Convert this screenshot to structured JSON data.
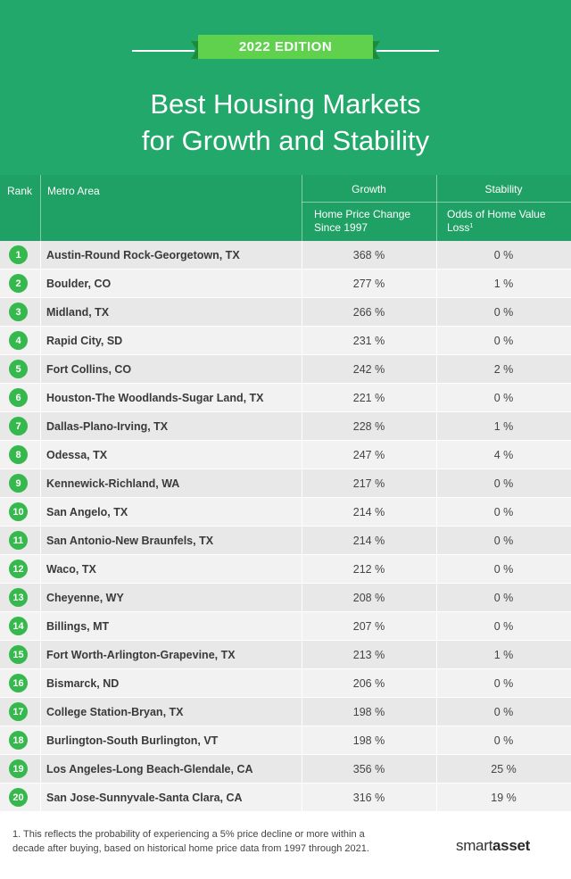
{
  "header": {
    "edition": "2022 EDITION",
    "title_line1": "Best Housing Markets",
    "title_line2": "for Growth and Stability"
  },
  "columns": {
    "rank": "Rank",
    "metro": "Metro Area",
    "growth_group": "Growth",
    "growth_sub_line1": "Home Price Change",
    "growth_sub_line2": "Since 1997",
    "stability_group": "Stability",
    "stability_sub_line1": "Odds of Home Value",
    "stability_sub_line2": "Loss",
    "stability_sup": "1"
  },
  "rows": [
    {
      "rank": "1",
      "metro": "Austin-Round Rock-Georgetown, TX",
      "growth": "368 %",
      "stability": "0 %"
    },
    {
      "rank": "2",
      "metro": "Boulder, CO",
      "growth": "277 %",
      "stability": "1 %"
    },
    {
      "rank": "3",
      "metro": "Midland, TX",
      "growth": "266 %",
      "stability": "0 %"
    },
    {
      "rank": "4",
      "metro": "Rapid City, SD",
      "growth": "231 %",
      "stability": "0 %"
    },
    {
      "rank": "5",
      "metro": "Fort Collins, CO",
      "growth": "242 %",
      "stability": "2 %"
    },
    {
      "rank": "6",
      "metro": "Houston-The Woodlands-Sugar Land, TX",
      "growth": "221 %",
      "stability": "0 %"
    },
    {
      "rank": "7",
      "metro": "Dallas-Plano-Irving, TX",
      "growth": "228 %",
      "stability": "1 %"
    },
    {
      "rank": "8",
      "metro": "Odessa, TX",
      "growth": "247 %",
      "stability": "4 %"
    },
    {
      "rank": "9",
      "metro": "Kennewick-Richland, WA",
      "growth": "217 %",
      "stability": "0 %"
    },
    {
      "rank": "10",
      "metro": "San Angelo, TX",
      "growth": "214 %",
      "stability": "0 %"
    },
    {
      "rank": "11",
      "metro": "San Antonio-New Braunfels, TX",
      "growth": "214 %",
      "stability": "0 %"
    },
    {
      "rank": "12",
      "metro": "Waco, TX",
      "growth": "212 %",
      "stability": "0 %"
    },
    {
      "rank": "13",
      "metro": "Cheyenne, WY",
      "growth": "208 %",
      "stability": "0 %"
    },
    {
      "rank": "14",
      "metro": "Billings, MT",
      "growth": "207 %",
      "stability": "0 %"
    },
    {
      "rank": "15",
      "metro": "Fort Worth-Arlington-Grapevine, TX",
      "growth": "213 %",
      "stability": "1 %"
    },
    {
      "rank": "16",
      "metro": "Bismarck, ND",
      "growth": "206 %",
      "stability": "0 %"
    },
    {
      "rank": "17",
      "metro": "College Station-Bryan, TX",
      "growth": "198 %",
      "stability": "0 %"
    },
    {
      "rank": "18",
      "metro": "Burlington-South Burlington, VT",
      "growth": "198 %",
      "stability": "0 %"
    },
    {
      "rank": "19",
      "metro": "Los Angeles-Long Beach-Glendale, CA",
      "growth": "356 %",
      "stability": "25 %"
    },
    {
      "rank": "20",
      "metro": "San Jose-Sunnyvale-Santa Clara, CA",
      "growth": "316 %",
      "stability": "19 %"
    }
  ],
  "footnote": {
    "line1": "1. This reflects the probability of experiencing a 5% price decline or more within a",
    "line2": "decade after buying, based on historical home price data from 1997 through 2021."
  },
  "logo": {
    "part1": "smart",
    "part2": "asset"
  },
  "colors": {
    "header_bg": "#21a86a",
    "table_header_bg": "#1fa064",
    "ribbon": "#5fd14d",
    "rank_badge": "#35b84c"
  }
}
